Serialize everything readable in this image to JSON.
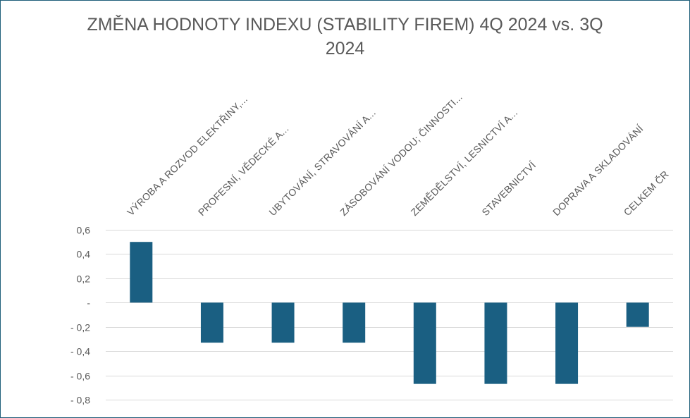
{
  "chart_data": {
    "type": "bar",
    "title_lines": [
      "ZMĚNA HODNOTY INDEXU (STABILITY FIREM) 4Q 2024 vs. 3Q",
      "2024"
    ],
    "categories": [
      "VÝROBA A ROZVOD ELEKTŘINY,...",
      "PROFESNÍ, VĚDECKÉ A...",
      "UBYTOVÁNÍ, STRAVOVÁNÍ A...",
      "ZÁSOBOVÁNÍ VODOU; ČINNOSTI...",
      "ZEMĚDĚLSTVÍ, LESNICTVÍ A...",
      "STAVEBNICTVÍ",
      "DOPRAVA A SKLADOVÁNÍ",
      "CELKEM ČR"
    ],
    "values": [
      0.5,
      -0.33,
      -0.33,
      -0.33,
      -0.67,
      -0.67,
      -0.67,
      -0.2
    ],
    "ylim": [
      -0.8,
      0.6
    ],
    "yticks": [
      0.6,
      0.4,
      0.2,
      0,
      -0.2,
      -0.4,
      -0.6,
      -0.8
    ],
    "ytick_labels": [
      "0,6",
      "0,4",
      "0,2",
      "-",
      "- 0,2",
      "- 0,4",
      "- 0,6",
      "- 0,8"
    ],
    "xlabel": "",
    "ylabel": "",
    "grid": true,
    "legend": "none",
    "bar_color": "#1a5f82",
    "category_axis_position": "top"
  }
}
